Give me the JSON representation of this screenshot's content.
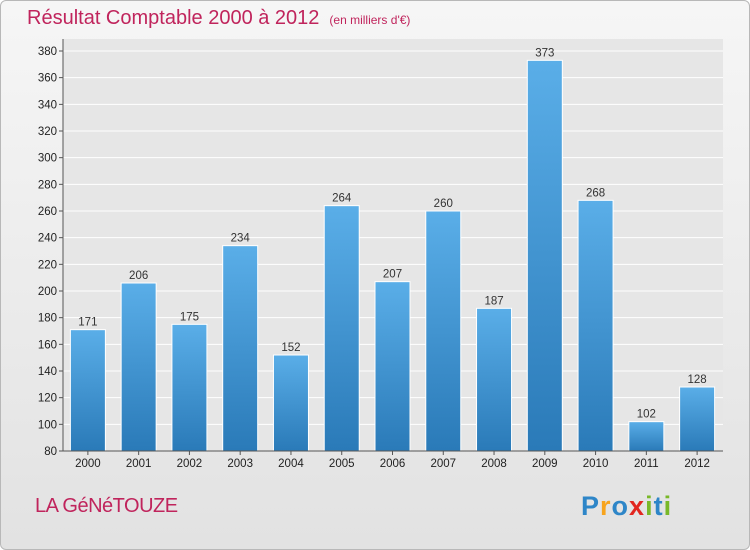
{
  "title": "Résultat Comptable 2000 à 2012",
  "subtitle": "(en milliers d'€)",
  "place_name": "LA GéNéTOUZE",
  "logo": {
    "letters": [
      "P",
      "r",
      "o",
      "x",
      "i",
      "t",
      "i"
    ],
    "colors": [
      "#2e86c8",
      "#f7a41d",
      "#2e86c8",
      "#e2261f",
      "#79b829",
      "#2e86c8",
      "#79b829"
    ]
  },
  "colors": {
    "title": "#c0245c",
    "bar_light": "#5aaee8",
    "bar_dark": "#2a7ab8",
    "grid": "#ffffff"
  },
  "chart_data": {
    "type": "bar",
    "title": "Résultat Comptable 2000 à 2012",
    "xlabel": "",
    "ylabel": "(en milliers d'€)",
    "categories": [
      "2000",
      "2001",
      "2002",
      "2003",
      "2004",
      "2005",
      "2006",
      "2007",
      "2008",
      "2009",
      "2010",
      "2011",
      "2012"
    ],
    "values": [
      171,
      206,
      175,
      234,
      152,
      264,
      207,
      260,
      187,
      373,
      268,
      102,
      128
    ],
    "ylim": [
      80,
      380
    ],
    "yticks": [
      80,
      100,
      120,
      140,
      160,
      180,
      200,
      220,
      240,
      260,
      280,
      300,
      320,
      340,
      360,
      380
    ],
    "grid": true,
    "legend": "none"
  }
}
